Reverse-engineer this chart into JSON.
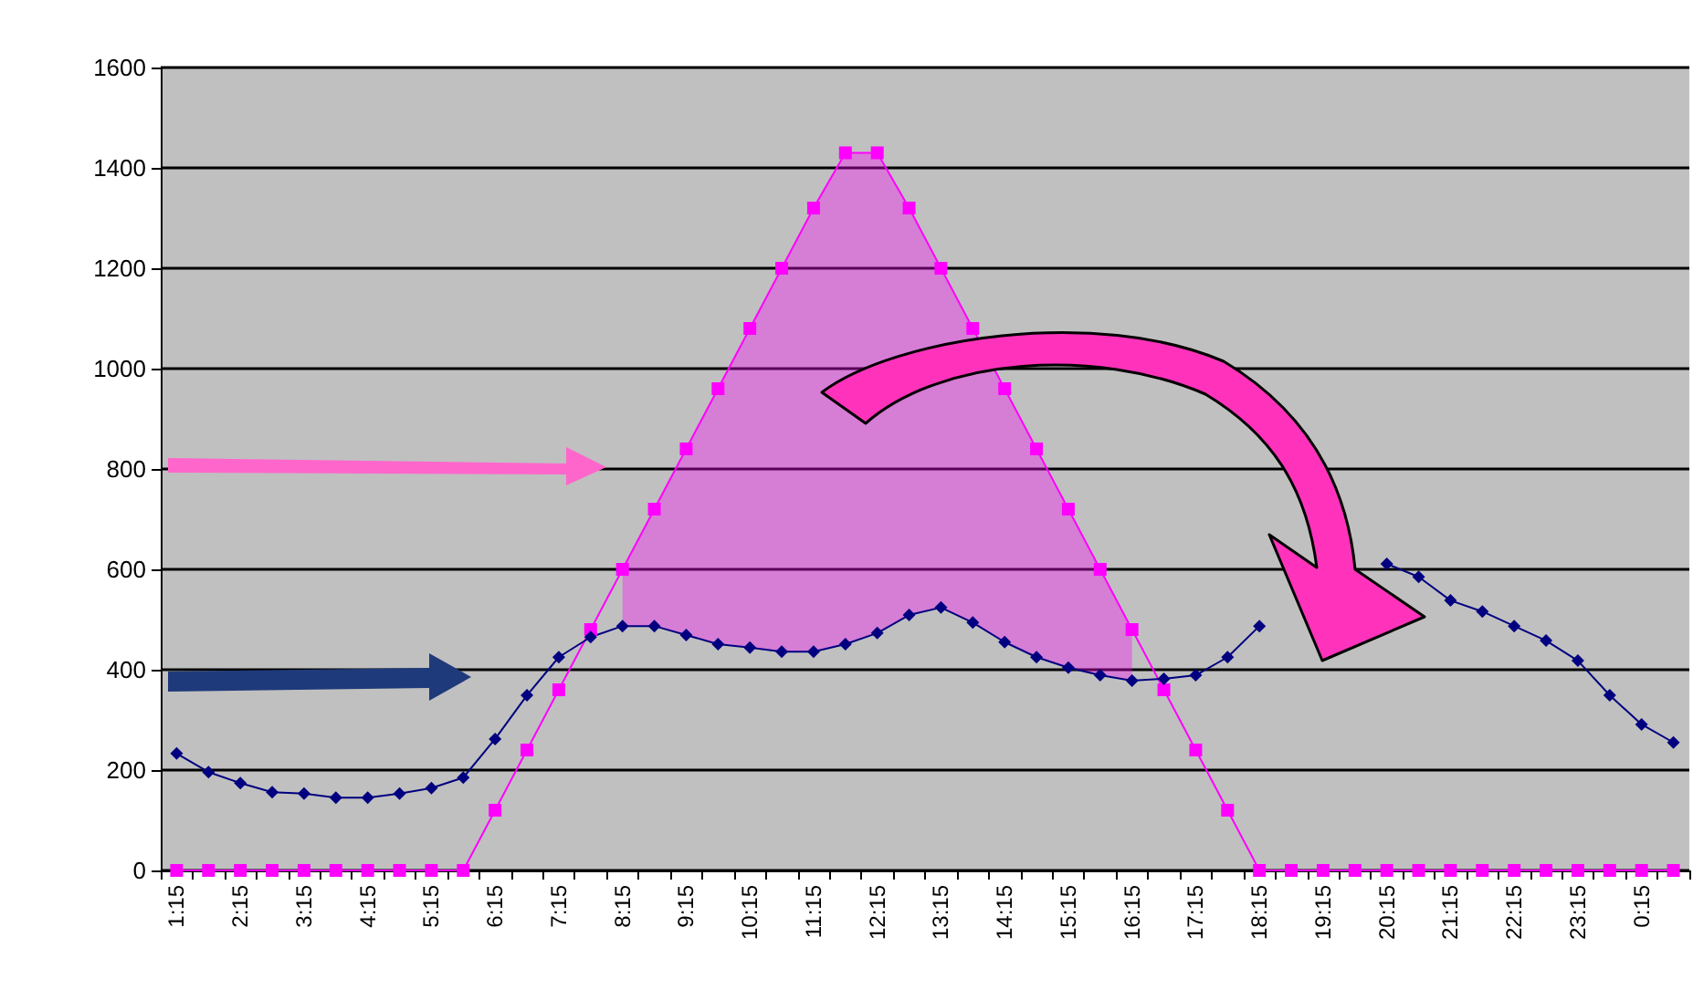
{
  "chart_data": {
    "type": "line",
    "categories": [
      "1:15",
      null,
      "2:15",
      null,
      "3:15",
      null,
      "4:15",
      null,
      "5:15",
      null,
      "6:15",
      null,
      "7:15",
      null,
      "8:15",
      null,
      "9:15",
      null,
      "10:15",
      null,
      "11:15",
      null,
      "12:15",
      null,
      "13:15",
      null,
      "14:15",
      null,
      "15:15",
      null,
      "16:15",
      null,
      "17:15",
      null,
      "18:15",
      null,
      "19:15",
      null,
      "20:15",
      null,
      "21:15",
      null,
      "22:15",
      null,
      "23:15",
      null,
      "0:15",
      null
    ],
    "series": [
      {
        "color": "#ff00ff",
        "marker": "square",
        "values": [
          0,
          0,
          0,
          0,
          0,
          0,
          0,
          0,
          0,
          0,
          120,
          240,
          360,
          480,
          600,
          720,
          840,
          960,
          1080,
          1200,
          1320,
          1430,
          1430,
          1320,
          1200,
          1080,
          960,
          840,
          720,
          600,
          480,
          360,
          240,
          120,
          0,
          0,
          0,
          0,
          0,
          0,
          0,
          0,
          0,
          0,
          0,
          0,
          0,
          0
        ],
        "upper": [
          null,
          null,
          null,
          null,
          null,
          null,
          null,
          null,
          null,
          null,
          null,
          null,
          null,
          null,
          600,
          720,
          840,
          960,
          1080,
          1200,
          1320,
          1430,
          1430,
          1320,
          1200,
          1080,
          960,
          840,
          720,
          600,
          480,
          null,
          null,
          null,
          null,
          null,
          null,
          null,
          null,
          null,
          null,
          null,
          null,
          null,
          null,
          null,
          null,
          null
        ],
        "lower": [
          null,
          null,
          null,
          null,
          null,
          null,
          null,
          null,
          null,
          null,
          null,
          null,
          null,
          null,
          487,
          487,
          469,
          451,
          444,
          436,
          436,
          451,
          473,
          509,
          524,
          494,
          455,
          425,
          404,
          389,
          378,
          null,
          null,
          null,
          null,
          null,
          null,
          null,
          null,
          null,
          null,
          null,
          null,
          null,
          null,
          null,
          null,
          null
        ]
      },
      {
        "color": "#000080",
        "marker": "diamond",
        "values": [
          233,
          196,
          174,
          156,
          153,
          145,
          145,
          153,
          164,
          185,
          262,
          349,
          425,
          465,
          487,
          487,
          469,
          451,
          444,
          436,
          436,
          451,
          473,
          509,
          524,
          494,
          455,
          425,
          404,
          389,
          378,
          382,
          389,
          425,
          487,
          null,
          null,
          null,
          611,
          585,
          538,
          516,
          487,
          458,
          418,
          349,
          291,
          255
        ]
      }
    ],
    "ylim": [
      0,
      1600
    ],
    "yticks": [
      0,
      200,
      400,
      600,
      800,
      1000,
      1200,
      1400,
      1600
    ],
    "grid": "y"
  }
}
